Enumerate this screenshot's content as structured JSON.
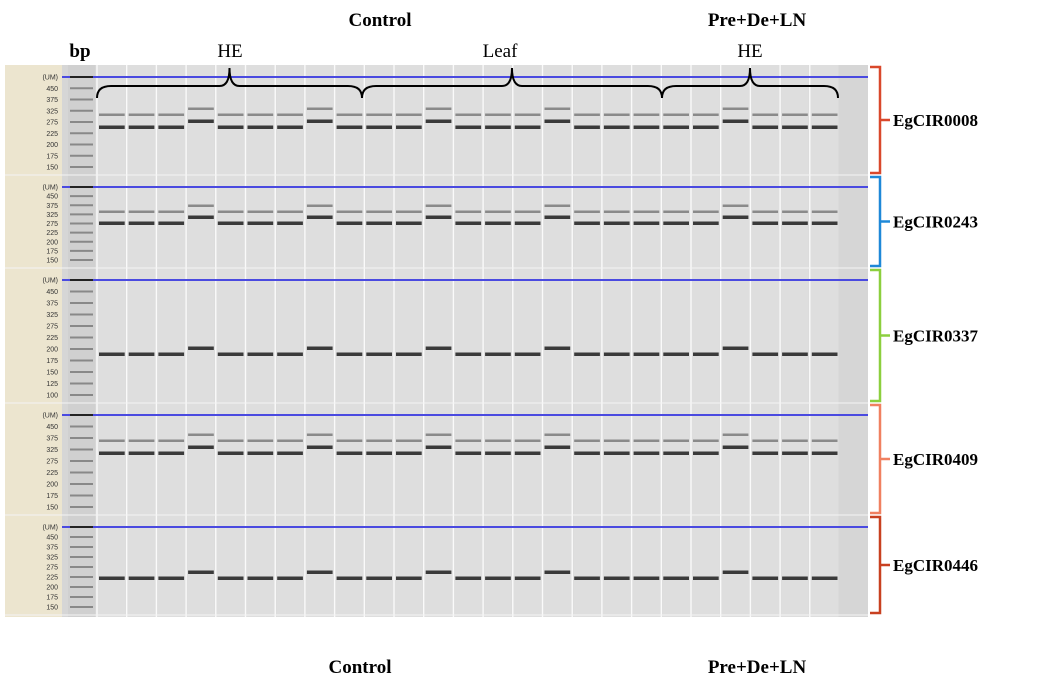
{
  "header": {
    "groups": [
      "Control",
      "Pre+De+LN"
    ],
    "ladder_label": "bp",
    "tissues": [
      "HE",
      "Leaf",
      "HE"
    ]
  },
  "panels": [
    {
      "marker": "EgCIR0008",
      "ladder": [
        "(UM)",
        "450",
        "375",
        "325",
        "275",
        "225",
        "200",
        "175",
        "150"
      ]
    },
    {
      "marker": "EgCIR0243",
      "ladder": [
        "(UM)",
        "450",
        "375",
        "325",
        "275",
        "225",
        "200",
        "175",
        "150"
      ]
    },
    {
      "marker": "EgCIR0337",
      "ladder": [
        "(UM)",
        "450",
        "375",
        "325",
        "275",
        "225",
        "200",
        "175",
        "150",
        "125",
        "100"
      ]
    },
    {
      "marker": "EgCIR0409",
      "ladder": [
        "(UM)",
        "450",
        "375",
        "325",
        "275",
        "225",
        "200",
        "175",
        "150"
      ]
    },
    {
      "marker": "EgCIR0446",
      "ladder": [
        "(UM)",
        "450",
        "375",
        "325",
        "275",
        "225",
        "200",
        "175",
        "150"
      ]
    }
  ],
  "footer": {
    "groups": [
      "Control",
      "Pre+De+LN"
    ]
  }
}
